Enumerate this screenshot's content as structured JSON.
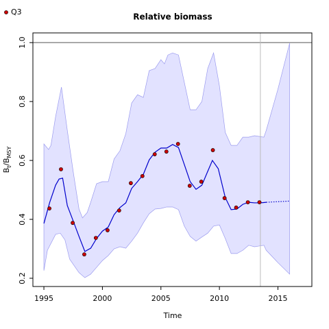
{
  "chart_data": {
    "type": "line",
    "title": "Relative biomass",
    "xlabel": "Time",
    "ylabel_parts": [
      {
        "text": "B"
      },
      {
        "text": "t",
        "sub": true
      },
      {
        "text": "/B"
      },
      {
        "text": "MSY",
        "sub": true
      }
    ],
    "xlim": [
      1994.06,
      2017.9
    ],
    "ylim": [
      0.172,
      1.033
    ],
    "xticks": [
      1995,
      2000,
      2005,
      2010,
      2015
    ],
    "yticks": [
      0.2,
      0.4,
      0.6,
      0.8,
      {
        "value": 1,
        "label": "1.0"
      }
    ],
    "hline": 1,
    "vline": 2013.5,
    "band": {
      "color": "#e2e2ff",
      "edge_color": "#9a9aee",
      "x_upper": [
        1995,
        1995.4,
        1995.6,
        1996,
        1996.5,
        1997,
        1997.5,
        1998,
        1998.3,
        1998.7,
        1999,
        1999.5,
        2000,
        2000.5,
        2001,
        2001.5,
        2002,
        2002.5,
        2003,
        2003.5,
        2004,
        2004.5,
        2005,
        2005.3,
        2005.6,
        2006,
        2006.5,
        2007,
        2007.5,
        2008,
        2008.5,
        2009,
        2009.5,
        2010,
        2010.5,
        2011,
        2011.5,
        2012,
        2012.5,
        2013,
        2013.8,
        2014,
        2015,
        2016
      ],
      "upper": [
        0.656,
        0.637,
        0.651,
        0.749,
        0.849,
        0.702,
        0.563,
        0.435,
        0.405,
        0.423,
        0.458,
        0.521,
        0.528,
        0.528,
        0.605,
        0.633,
        0.691,
        0.795,
        0.823,
        0.814,
        0.905,
        0.912,
        0.942,
        0.928,
        0.958,
        0.965,
        0.958,
        0.865,
        0.772,
        0.772,
        0.8,
        0.912,
        0.965,
        0.853,
        0.695,
        0.651,
        0.651,
        0.679,
        0.679,
        0.684,
        0.679,
        0.702,
        0.842,
        0.998
      ],
      "x_lower": [
        1995,
        1995.3,
        1996,
        1996.4,
        1996.8,
        1997.2,
        1997.6,
        1998,
        1998.5,
        1999,
        1999.5,
        2000,
        2000.5,
        2001,
        2001.5,
        2002,
        2002.5,
        2003,
        2003.5,
        2004,
        2004.5,
        2005,
        2005.5,
        2006,
        2006.5,
        2007,
        2007.5,
        2008,
        2008.5,
        2009,
        2009.5,
        2010,
        2010.5,
        2011,
        2011.5,
        2012,
        2012.5,
        2013,
        2013.8,
        2014,
        2015,
        2016
      ],
      "lower": [
        0.226,
        0.295,
        0.349,
        0.353,
        0.33,
        0.265,
        0.242,
        0.219,
        0.202,
        0.214,
        0.237,
        0.26,
        0.277,
        0.3,
        0.307,
        0.302,
        0.326,
        0.353,
        0.388,
        0.419,
        0.435,
        0.437,
        0.442,
        0.442,
        0.433,
        0.377,
        0.342,
        0.326,
        0.34,
        0.353,
        0.377,
        0.381,
        0.335,
        0.284,
        0.284,
        0.295,
        0.312,
        0.307,
        0.312,
        0.295,
        0.253,
        0.214
      ]
    },
    "line": {
      "color": "#0000cc",
      "x": [
        1995,
        1995.5,
        1996,
        1996.3,
        1996.6,
        1997,
        1997.5,
        1998,
        1998.5,
        1999,
        1999.5,
        2000,
        2000.5,
        2001,
        2001.5,
        2002,
        2002.5,
        2003,
        2003.5,
        2004,
        2004.5,
        2005,
        2005.5,
        2006,
        2006.5,
        2007,
        2007.5,
        2008,
        2008.5,
        2009,
        2009.4,
        2009.9,
        2010.5,
        2011,
        2011.5,
        2012,
        2012.5,
        2013,
        2013.5,
        2014
      ],
      "values": [
        0.386,
        0.458,
        0.516,
        0.537,
        0.54,
        0.447,
        0.395,
        0.342,
        0.291,
        0.302,
        0.335,
        0.36,
        0.374,
        0.416,
        0.44,
        0.456,
        0.505,
        0.528,
        0.553,
        0.602,
        0.628,
        0.642,
        0.642,
        0.654,
        0.644,
        0.586,
        0.528,
        0.502,
        0.516,
        0.563,
        0.6,
        0.572,
        0.474,
        0.433,
        0.435,
        0.451,
        0.458,
        0.456,
        0.456,
        0.458
      ]
    },
    "projection": {
      "color": "#0000cc",
      "x": [
        2014,
        2015,
        2016
      ],
      "values": [
        0.458,
        0.46,
        0.462
      ]
    },
    "points": {
      "name": "Q3",
      "color": "#cc0000",
      "x": [
        1995.47,
        1996.46,
        1997.46,
        1998.45,
        1999.44,
        2000.44,
        2001.43,
        2002.43,
        2003.42,
        2004.47,
        2005.47,
        2006.46,
        2007.46,
        2008.45,
        2009.44,
        2010.44,
        2011.43,
        2012.43,
        2013.42
      ],
      "values": [
        0.437,
        0.57,
        0.388,
        0.281,
        0.337,
        0.363,
        0.43,
        0.523,
        0.547,
        0.621,
        0.63,
        0.656,
        0.514,
        0.528,
        0.635,
        0.472,
        0.44,
        0.458,
        0.458
      ]
    },
    "legend": "top-left"
  }
}
